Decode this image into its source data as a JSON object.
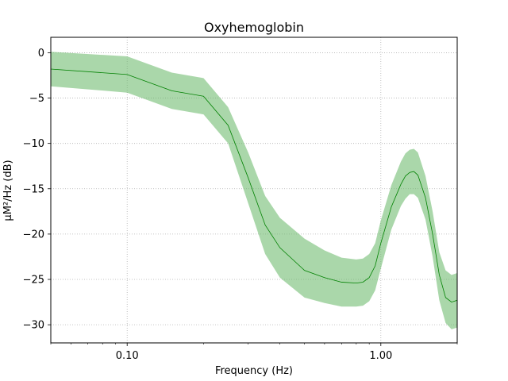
{
  "chart_data": {
    "type": "area",
    "title": "Oxyhemoglobin",
    "xlabel": "Frequency (Hz)",
    "ylabel": "µM²/Hz (dB)",
    "xscale": "log",
    "xlim": [
      0.05,
      2.0
    ],
    "ylim": [
      -32,
      1.7
    ],
    "grid": true,
    "x_ticks": [
      {
        "value": 0.1,
        "label": "0.10"
      },
      {
        "value": 1.0,
        "label": "1.00"
      }
    ],
    "x_minor_ticks": [
      0.05,
      0.06,
      0.07,
      0.08,
      0.09,
      0.2,
      0.3,
      0.4,
      0.5,
      0.6,
      0.7,
      0.8,
      0.9,
      2.0
    ],
    "y_ticks": [
      {
        "value": 0,
        "label": "0"
      },
      {
        "value": -5,
        "label": "−5"
      },
      {
        "value": -10,
        "label": "−10"
      },
      {
        "value": -15,
        "label": "−15"
      },
      {
        "value": -20,
        "label": "−20"
      },
      {
        "value": -25,
        "label": "−25"
      },
      {
        "value": -30,
        "label": "−30"
      }
    ],
    "line_color": "#008000",
    "band_color": "#6ab96a",
    "x": [
      0.05,
      0.1,
      0.15,
      0.2,
      0.25,
      0.3,
      0.35,
      0.4,
      0.5,
      0.6,
      0.7,
      0.8,
      0.85,
      0.9,
      0.95,
      1.0,
      1.1,
      1.2,
      1.25,
      1.3,
      1.35,
      1.4,
      1.5,
      1.6,
      1.7,
      1.8,
      1.9,
      2.0
    ],
    "mean": [
      -1.8,
      -2.4,
      -4.2,
      -4.8,
      -8.0,
      -13.8,
      -19.0,
      -21.5,
      -24.0,
      -24.8,
      -25.3,
      -25.4,
      -25.3,
      -24.8,
      -23.5,
      -21.0,
      -17.0,
      -14.5,
      -13.6,
      -13.2,
      -13.1,
      -13.5,
      -16.0,
      -20.0,
      -24.5,
      -27.0,
      -27.5,
      -27.3
    ],
    "upper": [
      0.1,
      -0.4,
      -2.2,
      -2.8,
      -6.0,
      -11.0,
      -15.8,
      -18.2,
      -20.5,
      -21.8,
      -22.6,
      -22.8,
      -22.7,
      -22.2,
      -21.0,
      -18.5,
      -14.6,
      -12.0,
      -11.1,
      -10.7,
      -10.6,
      -11.0,
      -13.6,
      -17.5,
      -22.0,
      -24.0,
      -24.5,
      -24.3
    ],
    "lower": [
      -3.7,
      -4.4,
      -6.2,
      -6.8,
      -10.0,
      -16.6,
      -22.2,
      -24.8,
      -27.0,
      -27.6,
      -28.0,
      -28.0,
      -27.9,
      -27.4,
      -26.2,
      -23.8,
      -19.5,
      -16.9,
      -16.1,
      -15.6,
      -15.6,
      -16.0,
      -18.4,
      -22.5,
      -27.3,
      -29.8,
      -30.5,
      -30.3
    ]
  }
}
